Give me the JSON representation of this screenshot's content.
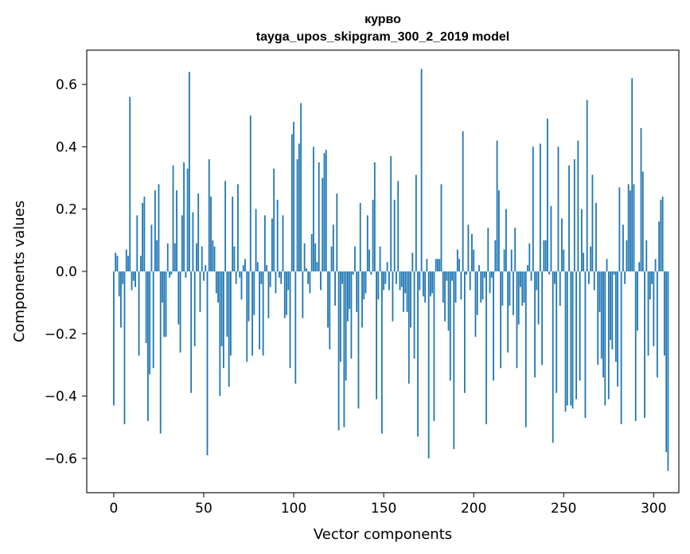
{
  "chart_data": {
    "type": "bar",
    "title": "курво",
    "subtitle": "tayga_upos_skipgram_300_2_2019 model",
    "xlabel": "Vector components",
    "ylabel": "Components values",
    "xlim": [
      -15,
      314
    ],
    "ylim": [
      -0.71,
      0.71
    ],
    "xticks": [
      0,
      50,
      100,
      150,
      200,
      250,
      300
    ],
    "yticks": [
      -0.6,
      -0.4,
      -0.2,
      0.0,
      0.2,
      0.4,
      0.6
    ],
    "ytick_labels": [
      "−0.6",
      "−0.4",
      "−0.2",
      "0.0",
      "0.2",
      "0.4",
      "0.6"
    ],
    "grid": false,
    "color": "#1f77b4",
    "values": [
      -0.43,
      0.06,
      0.05,
      -0.08,
      -0.18,
      -0.04,
      -0.49,
      0.07,
      0.05,
      0.56,
      -0.06,
      -0.03,
      -0.05,
      0.18,
      -0.27,
      0.05,
      0.22,
      0.24,
      -0.23,
      -0.48,
      -0.33,
      0.15,
      -0.31,
      0.26,
      0.1,
      0.28,
      -0.52,
      -0.1,
      -0.21,
      -0.21,
      0.09,
      -0.02,
      -0.01,
      0.34,
      0.09,
      0.26,
      -0.17,
      -0.26,
      0.18,
      0.35,
      -0.02,
      0.33,
      0.64,
      -0.39,
      0.19,
      -0.24,
      0.09,
      0.25,
      -0.13,
      0.08,
      -0.03,
      0.02,
      -0.59,
      0.36,
      0.24,
      0.1,
      0.08,
      -0.07,
      -0.1,
      -0.4,
      -0.24,
      -0.31,
      0.29,
      -0.21,
      -0.37,
      -0.27,
      0.24,
      0.08,
      -0.04,
      0.28,
      -0.02,
      -0.09,
      0.02,
      0.04,
      -0.29,
      -0.16,
      0.5,
      -0.27,
      -0.14,
      0.2,
      0.03,
      -0.25,
      -0.04,
      -0.27,
      0.18,
      0.02,
      -0.15,
      -0.05,
      0.17,
      0.33,
      -0.07,
      0.23,
      -0.02,
      -0.04,
      0.18,
      -0.15,
      -0.14,
      -0.06,
      -0.31,
      0.44,
      0.48,
      -0.36,
      0.36,
      0.41,
      0.54,
      -0.15,
      0.09,
      0.01,
      -0.04,
      -0.07,
      0.12,
      0.4,
      0.09,
      0.03,
      0.35,
      -0.06,
      0.3,
      0.38,
      0.39,
      -0.18,
      -0.25,
      0.08,
      0.15,
      -0.11,
      0.25,
      -0.51,
      -0.29,
      -0.04,
      -0.5,
      -0.35,
      -0.16,
      -0.12,
      -0.28,
      -0.01,
      0.08,
      -0.13,
      -0.44,
      0.22,
      -0.18,
      -0.09,
      -0.07,
      0.18,
      0.07,
      -0.01,
      0.23,
      0.35,
      -0.41,
      -0.09,
      0.08,
      -0.52,
      -0.06,
      -0.04,
      0.03,
      -0.06,
      0.37,
      -0.16,
      0.23,
      -0.04,
      0.29,
      -0.06,
      -0.05,
      -0.13,
      -0.07,
      -0.13,
      -0.36,
      -0.18,
      0.06,
      -0.28,
      0.31,
      -0.53,
      -0.06,
      0.65,
      -0.08,
      -0.1,
      0.04,
      -0.6,
      -0.08,
      -0.07,
      -0.48,
      0.04,
      0.04,
      0.04,
      0.28,
      -0.1,
      -0.16,
      -0.03,
      -0.19,
      -0.35,
      -0.03,
      -0.57,
      -0.1,
      0.07,
      0.04,
      -0.09,
      0.45,
      -0.39,
      -0.01,
      0.15,
      -0.06,
      0.12,
      0.07,
      -0.21,
      -0.14,
      0.02,
      -0.1,
      -0.09,
      -0.02,
      -0.49,
      0.14,
      -0.07,
      -0.02,
      -0.35,
      0.1,
      0.42,
      0.26,
      -0.31,
      -0.11,
      0.07,
      0.2,
      -0.26,
      -0.11,
      0.07,
      -0.14,
      0.14,
      -0.31,
      -0.17,
      -0.05,
      -0.11,
      -0.1,
      -0.5,
      0.02,
      0.09,
      -0.03,
      0.4,
      -0.34,
      -0.06,
      -0.17,
      0.41,
      -0.3,
      0.1,
      0.1,
      0.49,
      -0.01,
      0.21,
      -0.55,
      -0.04,
      -0.39,
      0.4,
      -0.11,
      0.17,
      0.07,
      -0.45,
      -0.43,
      0.34,
      -0.43,
      -0.44,
      0.36,
      -0.41,
      0.42,
      -0.35,
      0.2,
      0.06,
      -0.47,
      0.55,
      -0.04,
      0.08,
      0.31,
      -0.06,
      0.22,
      -0.3,
      -0.13,
      -0.28,
      -0.34,
      -0.43,
      0.04,
      -0.41,
      -0.22,
      -0.25,
      -0.01,
      -0.29,
      -0.37,
      0.27,
      -0.49,
      0.15,
      -0.04,
      0.1,
      0.28,
      0.26,
      0.62,
      0.28,
      -0.48,
      -0.19,
      0.03,
      0.46,
      0.32,
      -0.47,
      0.1,
      -0.27,
      -0.09,
      -0.04,
      -0.24,
      0.04,
      -0.34,
      0.16,
      0.23,
      0.24,
      -0.27,
      -0.58,
      -0.64
    ]
  }
}
